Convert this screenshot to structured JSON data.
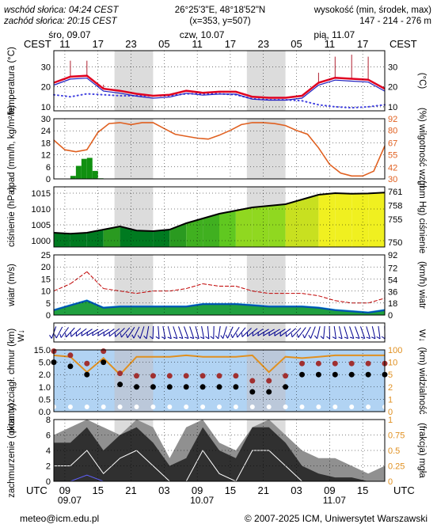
{
  "header": {
    "sunrise": "wschód słońca: 04:24 CEST",
    "sunset": "zachód słońca: 20:15 CEST",
    "coords": "26°25'3\"E, 48°18'52\"N",
    "grid": "(x=353, y=507)",
    "elev_title": "wysokość (min, środek, max)",
    "elev_values": "147 - 214 - 276 m",
    "tz_left": "CEST",
    "tz_right": "CEST",
    "utc_left": "UTC",
    "utc_right": "UTC"
  },
  "days_top": [
    "śro, 09.07",
    "czw, 10.07",
    "pią, 11.07"
  ],
  "days_bottom": [
    "09.07",
    "10.07",
    "11.07"
  ],
  "hours_cest": [
    "11",
    "17",
    "23",
    "05",
    "11",
    "17",
    "23",
    "05",
    "11",
    "17"
  ],
  "hours_utc": [
    "09",
    "15",
    "21",
    "03",
    "09",
    "15",
    "21",
    "03",
    "09",
    "15"
  ],
  "footer": {
    "email": "meteo@icm.edu.pl",
    "copyright": "© 2007-2025 ICM, Uniwersytet Warszawski"
  },
  "colors": {
    "night": "#dcdcdc",
    "temp": "#e00020",
    "dew": "#4040e0",
    "precip": "#109010",
    "humidity": "#e06020",
    "wind": "#0050b0",
    "gust": "#c00000",
    "cloud_dark": "#303030",
    "vis": "#e09020",
    "sky": "#9ec8f0"
  },
  "chart_data": [
    {
      "type": "line",
      "name": "temperature",
      "ylabel_left": "temperatura (°C)",
      "ylabel_right": "(°C)",
      "yticks": [
        10,
        20,
        30
      ],
      "ylim": [
        8,
        38
      ],
      "x_hours": [
        0,
        3,
        6,
        9,
        12,
        15,
        18,
        21,
        24,
        27,
        30,
        33,
        36,
        39,
        42,
        45,
        48,
        51,
        54,
        57,
        60
      ],
      "series": [
        {
          "name": "temperatura",
          "values": [
            22,
            25,
            25.5,
            19,
            18,
            16.5,
            15.5,
            16,
            18,
            17,
            17.5,
            17.5,
            15,
            14.5,
            14.5,
            15.5,
            22,
            24.5,
            24,
            23.5,
            19
          ]
        },
        {
          "name": "punkt rosy",
          "values": [
            16,
            15,
            16.5,
            16,
            15.5,
            15.5,
            15.5,
            15.5,
            16.5,
            16.5,
            16.5,
            16,
            14,
            13.5,
            13.5,
            13,
            11,
            10,
            9.5,
            10,
            11
          ]
        },
        {
          "name": "maks. temperatura",
          "values": [
            28,
            33,
            33,
            21,
            19,
            17,
            16,
            16.5,
            19,
            18,
            18,
            18,
            15.5,
            15,
            15,
            16,
            27,
            35,
            36,
            35,
            26
          ]
        }
      ]
    },
    {
      "type": "bar",
      "name": "precipitation",
      "ylabel_left": "opad (mm/h, kg/m²/h)",
      "ylabel_right": "(%) wilgotność wzgl.",
      "yticks_left": [
        0,
        6,
        12,
        18,
        24,
        30
      ],
      "yticks_right": [
        30,
        42,
        55,
        67,
        80,
        92
      ],
      "ylim": [
        0,
        30
      ],
      "precip_hours": [
        3,
        4,
        5,
        6,
        7,
        8
      ],
      "precip_values": [
        1.5,
        6.5,
        10,
        10.5,
        4,
        0.3
      ],
      "humidity_hours": [
        0,
        2,
        4,
        6,
        8,
        10,
        12,
        14,
        16,
        18,
        20,
        22,
        24,
        26,
        28,
        30,
        32,
        34,
        36,
        38,
        40,
        42,
        44,
        46,
        48,
        50,
        52,
        54,
        56,
        58,
        60
      ],
      "humidity_values": [
        70,
        60,
        58,
        60,
        78,
        87,
        88,
        86,
        88,
        88,
        82,
        76,
        74,
        72,
        71,
        75,
        80,
        86,
        88,
        88,
        87,
        85,
        80,
        76,
        62,
        45,
        36,
        33,
        33,
        38,
        64
      ]
    },
    {
      "type": "area",
      "name": "pressure",
      "ylabel_left": "ciśnienie (hPa)",
      "ylabel_right": "(mm Hg) ciśnienie",
      "yticks_left": [
        1000,
        1005,
        1010,
        1015
      ],
      "yticks_right": [
        750,
        755,
        758,
        761
      ],
      "ylim": [
        998,
        1017
      ],
      "x_hours": [
        0,
        3,
        6,
        9,
        12,
        15,
        18,
        21,
        24,
        27,
        30,
        33,
        36,
        39,
        42,
        45,
        48,
        51,
        54,
        57,
        60
      ],
      "values": [
        1002.5,
        1002.2,
        1002.5,
        1003.5,
        1004.5,
        1003.2,
        1003.0,
        1003.5,
        1005.5,
        1007.0,
        1008.5,
        1009.5,
        1010.5,
        1011.0,
        1011.5,
        1013.0,
        1014.5,
        1015.0,
        1014.8,
        1014.9,
        1015.2
      ]
    },
    {
      "type": "area",
      "name": "wind",
      "ylabel_left": "wiatr (m/s)",
      "ylabel_right": "(km/h) wiatr",
      "yticks_left": [
        0,
        5,
        10,
        15,
        20,
        25
      ],
      "yticks_right": [
        0,
        18,
        36,
        54,
        72,
        92
      ],
      "ylim": [
        0,
        25
      ],
      "x_hours": [
        0,
        3,
        6,
        9,
        12,
        15,
        18,
        21,
        24,
        27,
        30,
        33,
        36,
        39,
        42,
        45,
        48,
        51,
        54,
        57,
        60
      ],
      "series": [
        {
          "name": "prędkość",
          "values": [
            2,
            4,
            6,
            3,
            3.5,
            3.5,
            3.5,
            3.5,
            3.5,
            4.5,
            4.5,
            4.5,
            4,
            3.5,
            3.5,
            3.5,
            3,
            2,
            1.5,
            1,
            2
          ]
        },
        {
          "name": "porywy",
          "values": [
            10,
            13,
            18,
            11,
            10,
            9,
            10,
            10,
            11,
            13,
            12,
            12,
            10,
            9,
            9,
            9,
            8,
            6,
            5,
            5,
            7
          ]
        }
      ]
    },
    {
      "type": "scatter",
      "name": "visibility",
      "ylabel_left": "pion. rozciągł. chmur (km)",
      "ylabel_right": "(km) widzialność",
      "yticks_left": [
        "0.0",
        "0.5",
        "1.0",
        "2.0",
        "5.0",
        "15.0"
      ],
      "yticks_right": [
        0,
        1,
        2,
        5,
        10,
        100
      ],
      "x_hours": [
        0,
        3,
        6,
        9,
        12,
        15,
        18,
        21,
        24,
        27,
        30,
        33,
        36,
        39,
        42,
        45,
        48,
        51,
        54,
        57,
        60
      ],
      "visibility_km": [
        60,
        50,
        6,
        40,
        5,
        50,
        50,
        50,
        60,
        50,
        50,
        50,
        60,
        6,
        50,
        40,
        50,
        60,
        60,
        60,
        60
      ],
      "cloud_base_km": [
        5,
        4,
        2,
        5,
        1.2,
        1,
        1,
        1,
        1,
        1,
        1,
        1,
        0.8,
        0.8,
        1,
        2,
        2,
        2,
        2,
        2,
        2
      ]
    },
    {
      "type": "area",
      "name": "cloud_cover",
      "ylabel_left": "zachmurzenie (oktanty)",
      "ylabel_right": "(frakcja) mgła",
      "yticks_left": [
        0,
        2,
        4,
        6,
        8
      ],
      "yticks_right": [
        0,
        0.25,
        0.5,
        0.75,
        1
      ],
      "ylim": [
        0,
        8
      ],
      "x_hours": [
        0,
        3,
        6,
        9,
        12,
        15,
        18,
        21,
        24,
        27,
        30,
        33,
        36,
        39,
        42,
        45,
        48,
        51,
        54,
        57,
        60
      ],
      "series": [
        {
          "name": "całkowite",
          "values": [
            6,
            7,
            8,
            7,
            6,
            8,
            7,
            3,
            7,
            8,
            5,
            4,
            7,
            8,
            6,
            4,
            3,
            3,
            2,
            1,
            2
          ]
        },
        {
          "name": "niskie",
          "values": [
            5,
            5,
            7,
            4,
            6,
            7,
            5,
            2,
            3,
            7,
            4,
            3,
            7,
            7,
            5,
            2,
            1,
            0.5,
            0.5,
            0,
            0
          ]
        },
        {
          "name": "mgła",
          "values": [
            0,
            0,
            0.1,
            0,
            0,
            0,
            0,
            0,
            0,
            0,
            0,
            0,
            0,
            0,
            0,
            0,
            0,
            0,
            0,
            0,
            0
          ]
        }
      ]
    }
  ]
}
